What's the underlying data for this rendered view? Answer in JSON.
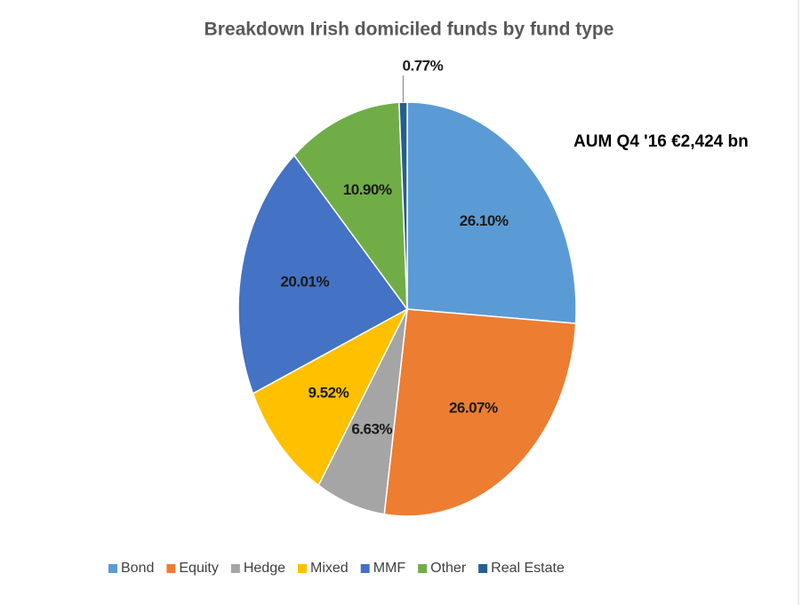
{
  "chart_data": {
    "type": "pie",
    "title": "Breakdown Irish domiciled funds by fund type",
    "annotation": "AUM Q4 '16 €2,424 bn",
    "categories": [
      "Bond",
      "Equity",
      "Hedge",
      "Mixed",
      "MMF",
      "Other",
      "Real Estate"
    ],
    "values": [
      26.1,
      26.07,
      6.63,
      9.52,
      20.01,
      10.9,
      0.77
    ],
    "value_labels": [
      "26.10%",
      "26.07%",
      "6.63%",
      "9.52%",
      "20.01%",
      "10.90%",
      "0.77%"
    ],
    "colors": [
      "#5b9bd5",
      "#ed7d31",
      "#a5a5a5",
      "#ffc000",
      "#4472c4",
      "#70ad47",
      "#255e91"
    ],
    "legend": "bottom"
  }
}
